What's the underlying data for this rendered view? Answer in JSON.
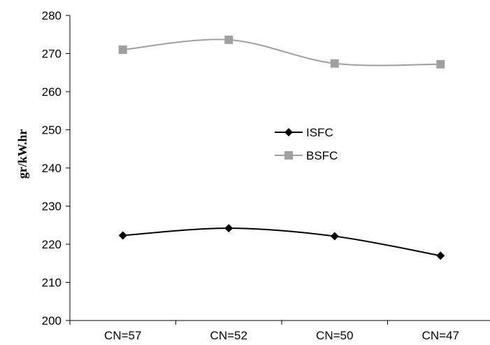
{
  "chart_data": {
    "type": "line",
    "title": "",
    "xlabel": "",
    "ylabel": "gr/kW.hr",
    "categories": [
      "CN=57",
      "CN=52",
      "CN=50",
      "CN=47"
    ],
    "ylim": [
      200,
      280
    ],
    "yticks": [
      200,
      210,
      220,
      230,
      240,
      250,
      260,
      270,
      280
    ],
    "grid": false,
    "legend_position": "center-right",
    "smooth": true,
    "series": [
      {
        "name": "ISFC",
        "marker": "diamond",
        "color": "#000000",
        "values": [
          222.3,
          224.2,
          222.1,
          217.0
        ]
      },
      {
        "name": "BSFC",
        "marker": "square",
        "color": "#a0a0a0",
        "values": [
          271.0,
          273.6,
          267.4,
          267.2
        ]
      }
    ]
  }
}
